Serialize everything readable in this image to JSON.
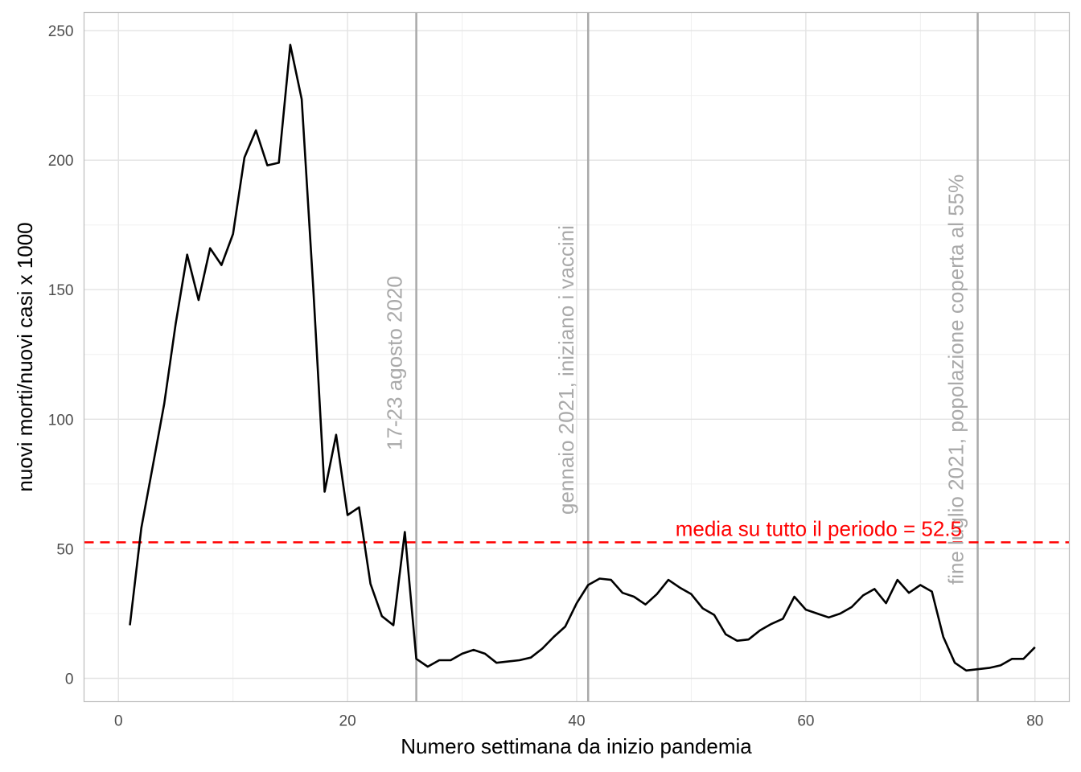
{
  "chart_data": {
    "type": "line",
    "title": "",
    "xlabel": "Numero settimana da inizio pandemia",
    "ylabel": "nuovi morti/nuovi casi x 1000",
    "xlim": [
      -3,
      83
    ],
    "ylim": [
      -9,
      257
    ],
    "xticks": [
      0,
      20,
      40,
      60,
      80
    ],
    "yticks": [
      0,
      50,
      100,
      150,
      200,
      250
    ],
    "grid": true,
    "series": [
      {
        "color": "#000000",
        "x": [
          1,
          2,
          3,
          4,
          5,
          6,
          7,
          8,
          9,
          10,
          11,
          12,
          13,
          14,
          15,
          16,
          17,
          18,
          19,
          20,
          21,
          22,
          23,
          24,
          25,
          26,
          27,
          28,
          29,
          30,
          31,
          32,
          33,
          34,
          35,
          36,
          37,
          38,
          39,
          40,
          41,
          42,
          43,
          44,
          45,
          46,
          47,
          48,
          49,
          50,
          51,
          52,
          53,
          54,
          55,
          56,
          57,
          58,
          59,
          60,
          61,
          62,
          63,
          64,
          65,
          66,
          67,
          68,
          69,
          70,
          71,
          72,
          73,
          74,
          75,
          76,
          77,
          78,
          79,
          80
        ],
        "y": [
          20.5,
          58,
          82,
          106,
          137,
          163.5,
          146,
          166,
          159.5,
          171.5,
          201,
          211.5,
          198,
          199,
          244.5,
          223.5,
          151,
          72,
          94,
          63,
          66,
          36.5,
          24,
          20.5,
          56.5,
          7.5,
          4.5,
          7,
          7,
          9.5,
          11,
          9.5,
          6,
          6.5,
          7,
          8,
          11.5,
          16,
          20,
          29,
          36,
          38.5,
          38,
          33,
          31.5,
          28.5,
          32.5,
          38,
          35,
          32.5,
          27,
          24.5,
          17,
          14.5,
          15,
          18.5,
          21,
          23,
          31.5,
          26.5,
          25,
          23.5,
          25,
          27.5,
          32,
          34.5,
          29,
          38,
          33,
          36,
          33.5,
          16,
          6,
          3,
          3.5,
          4,
          5,
          7.5,
          7.5,
          12
        ]
      }
    ],
    "vertical_lines": [
      {
        "x": 26,
        "label": "17-23 agosto 2020",
        "color": "#a9a9a9"
      },
      {
        "x": 41,
        "label": "gennaio 2021, iniziano i vaccini",
        "color": "#a9a9a9"
      },
      {
        "x": 75,
        "label": "fine luglio 2021, popolazione coperta al 55%",
        "color": "#a9a9a9"
      }
    ],
    "hline": {
      "y": 52.5,
      "label": "media su tutto il periodo = 52.5",
      "color": "#ff0000",
      "style": "dashed"
    }
  }
}
